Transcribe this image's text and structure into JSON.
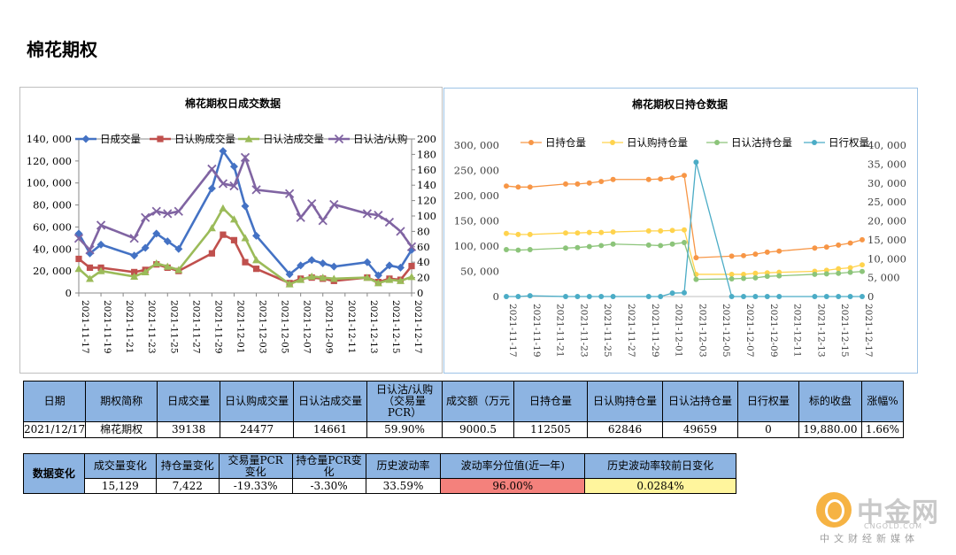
{
  "page": {
    "title": "棉花期权"
  },
  "chart_data": [
    {
      "type": "line",
      "title": "棉花期权日成交数据",
      "x": [
        "2021-11-17",
        "2021-11-18",
        "2021-11-19",
        "2021-11-22",
        "2021-11-23",
        "2021-11-24",
        "2021-11-25",
        "2021-11-26",
        "2021-11-29",
        "2021-11-30",
        "2021-12-01",
        "2021-12-02",
        "2021-12-03",
        "2021-12-06",
        "2021-12-07",
        "2021-12-08",
        "2021-12-09",
        "2021-12-10",
        "2021-12-13",
        "2021-12-14",
        "2021-12-15",
        "2021-12-16",
        "2021-12-17"
      ],
      "x_tick_labels": [
        "2021-11-17",
        "2021-11-19",
        "2021-11-21",
        "2021-11-23",
        "2021-11-25",
        "2021-11-27",
        "2021-11-29",
        "2021-12-01",
        "2021-12-03",
        "2021-12-05",
        "2021-12-07",
        "2021-12-09",
        "2021-12-11",
        "2021-12-13",
        "2021-12-15",
        "2021-12-17"
      ],
      "y_left_ticks": [
        "0",
        "20, 000",
        "40, 000",
        "60, 000",
        "80, 000",
        "100, 000",
        "120, 000",
        "140, 000"
      ],
      "y_right_ticks": [
        "0",
        "20",
        "40",
        "60",
        "80",
        "100",
        "120",
        "140",
        "160",
        "180",
        "200"
      ],
      "ylim_left": [
        0,
        140000
      ],
      "ylim_right": [
        0,
        200
      ],
      "x_start": "2021-11-17",
      "x_end": "2021-12-17",
      "series": [
        {
          "name": "日成交量",
          "axis": "left",
          "color": "#4472c4",
          "marker": "diamond",
          "values": [
            54000,
            36000,
            44000,
            34000,
            41000,
            54000,
            47000,
            40000,
            95000,
            129000,
            115000,
            79000,
            52000,
            17000,
            25000,
            30000,
            27000,
            24000,
            28000,
            16000,
            25000,
            23000,
            39138
          ]
        },
        {
          "name": "日认购成交量",
          "axis": "left",
          "color": "#c0504d",
          "marker": "square",
          "values": [
            31000,
            23000,
            23000,
            19000,
            21000,
            26000,
            23000,
            20000,
            36000,
            53000,
            48000,
            28000,
            22000,
            9000,
            13000,
            14000,
            13000,
            11000,
            14000,
            10000,
            13000,
            12000,
            24477
          ]
        },
        {
          "name": "日认沽成交量",
          "axis": "left",
          "color": "#9bbb59",
          "marker": "triangle",
          "values": [
            22000,
            13000,
            20000,
            15000,
            19000,
            27000,
            24000,
            21000,
            59000,
            77000,
            67000,
            50000,
            30000,
            8000,
            12000,
            15000,
            14000,
            13000,
            14000,
            9000,
            12000,
            11000,
            14661
          ]
        },
        {
          "name": "日认沽/认购",
          "axis": "right",
          "color": "#8064a2",
          "marker": "x",
          "values": [
            71,
            56,
            88,
            71,
            98,
            106,
            103,
            106,
            161,
            142,
            139,
            176,
            134,
            129,
            98,
            116,
            94,
            115,
            103,
            101,
            92,
            80,
            60
          ]
        }
      ]
    },
    {
      "type": "line",
      "title": "棉花期权日持仓数据",
      "x": [
        "2021-11-17",
        "2021-11-18",
        "2021-11-19",
        "2021-11-22",
        "2021-11-23",
        "2021-11-24",
        "2021-11-25",
        "2021-11-26",
        "2021-11-29",
        "2021-11-30",
        "2021-12-01",
        "2021-12-02",
        "2021-12-03",
        "2021-12-06",
        "2021-12-07",
        "2021-12-08",
        "2021-12-09",
        "2021-12-10",
        "2021-12-13",
        "2021-12-14",
        "2021-12-15",
        "2021-12-16",
        "2021-12-17"
      ],
      "x_tick_labels": [
        "2021-11-17",
        "2021-11-19",
        "2021-11-21",
        "2021-11-23",
        "2021-11-25",
        "2021-11-27",
        "2021-11-29",
        "2021-12-01",
        "2021-12-03",
        "2021-12-05",
        "2021-12-07",
        "2021-12-09",
        "2021-12-11",
        "2021-12-13",
        "2021-12-15",
        "2021-12-17"
      ],
      "y_left_ticks": [
        "0",
        "50, 000",
        "100, 000",
        "150, 000",
        "200, 000",
        "250, 000",
        "300, 000"
      ],
      "y_right_ticks": [
        "0",
        "5, 000",
        "10, 000",
        "15, 000",
        "20, 000",
        "25, 000",
        "30, 000",
        "35, 000",
        "40, 000"
      ],
      "ylim_left": [
        0,
        300000
      ],
      "ylim_right": [
        0,
        40000
      ],
      "x_start": "2021-11-17",
      "x_end": "2021-12-17",
      "series": [
        {
          "name": "日持仓量",
          "axis": "left",
          "color": "#f79646",
          "values": [
            219000,
            217000,
            217000,
            223000,
            223000,
            225000,
            228000,
            232000,
            232000,
            233000,
            235000,
            240000,
            77000,
            80000,
            81000,
            84000,
            88000,
            90000,
            96000,
            98000,
            102000,
            106000,
            112505
          ]
        },
        {
          "name": "日认购持仓量",
          "axis": "left",
          "color": "#ffd34d",
          "values": [
            125000,
            123000,
            123000,
            126000,
            126000,
            127000,
            127000,
            128000,
            130000,
            130000,
            131000,
            132000,
            44000,
            44000,
            44000,
            46000,
            47000,
            48000,
            50000,
            52000,
            55000,
            57000,
            62846
          ]
        },
        {
          "name": "日认沽持仓量",
          "axis": "left",
          "color": "#8cc47a",
          "values": [
            93000,
            92000,
            93000,
            96000,
            97000,
            99000,
            101000,
            104000,
            102000,
            101000,
            104000,
            107000,
            34000,
            35000,
            36000,
            37000,
            40000,
            41000,
            44000,
            45000,
            46000,
            48000,
            49659
          ]
        },
        {
          "name": "日行权量",
          "axis": "right",
          "color": "#4bacc6",
          "values": [
            0,
            0,
            200,
            0,
            0,
            0,
            0,
            0,
            0,
            0,
            900,
            1000,
            35500,
            0,
            0,
            0,
            0,
            0,
            0,
            0,
            0,
            0,
            0
          ]
        }
      ]
    }
  ],
  "table1": {
    "headers": [
      "日期",
      "期权简称",
      "日成交量",
      "日认购成交量",
      "日认沽成交量",
      "日认沽/认购\n（交易量\nPCR）",
      "成交额（万元",
      "日持仓量",
      "日认购持仓量",
      "日认沽持仓量",
      "日行权量",
      "标的收盘",
      "涨幅%"
    ],
    "values": [
      "2021/12/17",
      "棉花期权",
      "39138",
      "24477",
      "14661",
      "59.90%",
      "9000.5",
      "112505",
      "62846",
      "49659",
      "0",
      "19,880.00",
      "1.66%"
    ]
  },
  "table2": {
    "row_label": "数据变化",
    "headers": [
      "成交量变化",
      "持仓量变化",
      "交易量PCR\n变化",
      "持仓量PCR变\n化",
      "历史波动率",
      "波动率分位值(近一年)",
      "历史波动率较前日变化"
    ],
    "values": [
      "15,129",
      "7,422",
      "-19.33%",
      "-3.30%",
      "33.59%",
      "96.00%",
      "0.0284%"
    ],
    "highlight_colors": {
      "percentile": "#f4817c",
      "hv_change": "#fff59d"
    }
  },
  "watermark": {
    "brand": "中金网",
    "url": "CNGOLD.COM",
    "slogan": "中文财经新媒体"
  }
}
